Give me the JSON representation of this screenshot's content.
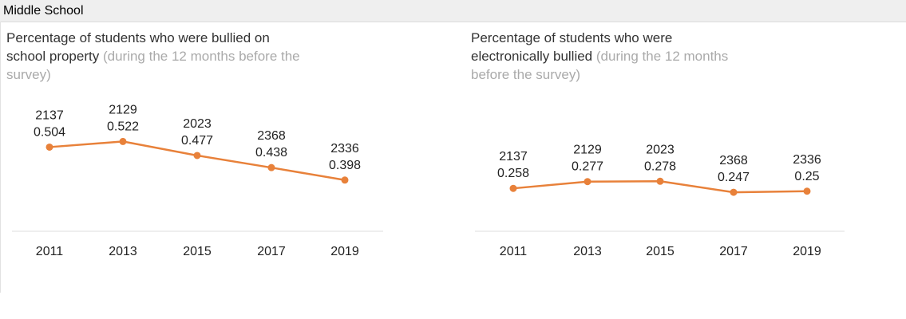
{
  "header": {
    "title": "Middle School"
  },
  "chart_data": [
    {
      "type": "line",
      "title": "Percentage of students who were bullied on school property",
      "subtitle": "(during the 12 months before the survey)",
      "categories": [
        "2011",
        "2013",
        "2015",
        "2017",
        "2019"
      ],
      "counts": [
        "2137",
        "2129",
        "2023",
        "2368",
        "2336"
      ],
      "values": [
        0.504,
        0.522,
        0.477,
        0.438,
        0.398
      ],
      "ylim": [
        0,
        1
      ],
      "color": "#e8813a",
      "grid": false
    },
    {
      "type": "line",
      "title": "Percentage of students who were electronically bullied",
      "subtitle": "(during the 12 months before the survey)",
      "categories": [
        "2011",
        "2013",
        "2015",
        "2017",
        "2019"
      ],
      "counts": [
        "2137",
        "2129",
        "2023",
        "2368",
        "2336"
      ],
      "values": [
        0.258,
        0.277,
        0.278,
        0.247,
        0.25
      ],
      "ylim": [
        0,
        1
      ],
      "color": "#e8813a",
      "grid": false
    }
  ]
}
